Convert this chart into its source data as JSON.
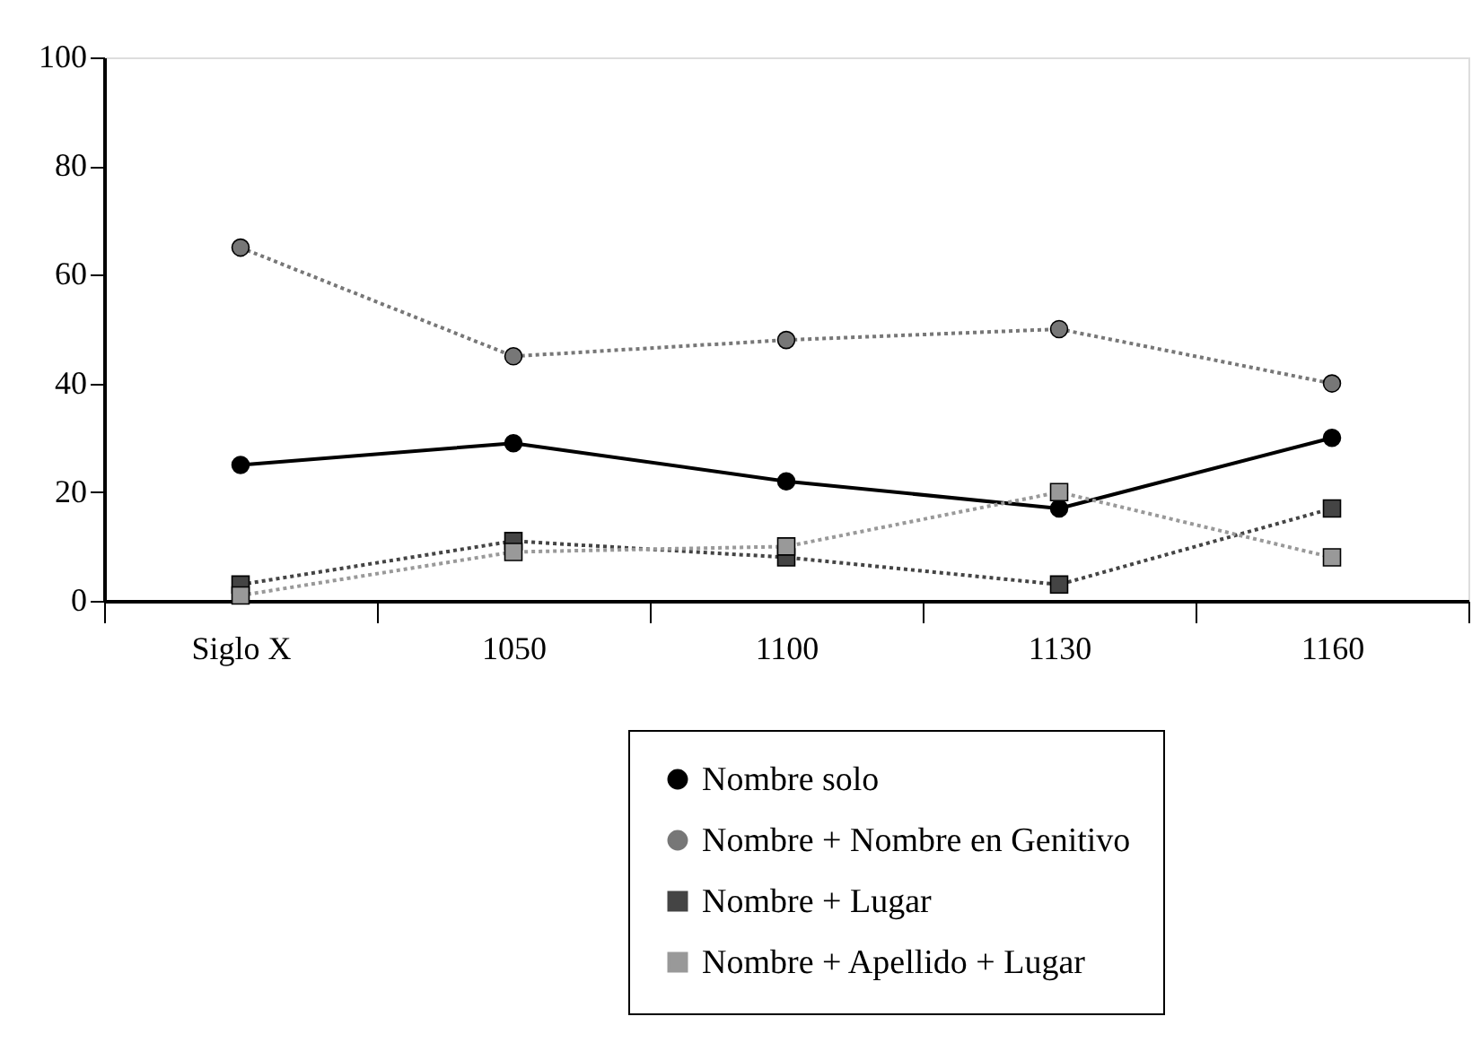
{
  "chart_data": {
    "type": "line",
    "categories": [
      "Siglo X",
      "1050",
      "1100",
      "1130",
      "1160"
    ],
    "series": [
      {
        "name": "Nombre solo",
        "color": "#000000",
        "marker": "circle",
        "line_style": "solid",
        "values": [
          25,
          29,
          22,
          17,
          30
        ]
      },
      {
        "name": "Nombre + Nombre en Genitivo",
        "color": "#777777",
        "marker": "circle",
        "line_style": "dotted",
        "values": [
          65,
          45,
          48,
          50,
          40
        ]
      },
      {
        "name": "Nombre + Lugar",
        "color": "#444444",
        "marker": "square",
        "line_style": "dotted",
        "values": [
          3,
          11,
          8,
          3,
          17
        ]
      },
      {
        "name": "Nombre + Apellido + Lugar",
        "color": "#999999",
        "marker": "square",
        "line_style": "dotted",
        "values": [
          1,
          9,
          10,
          20,
          8
        ]
      }
    ],
    "ylim": [
      0,
      100
    ],
    "yticks": [
      0,
      20,
      40,
      60,
      80,
      100
    ],
    "grid": false,
    "legend": "bottom right"
  }
}
